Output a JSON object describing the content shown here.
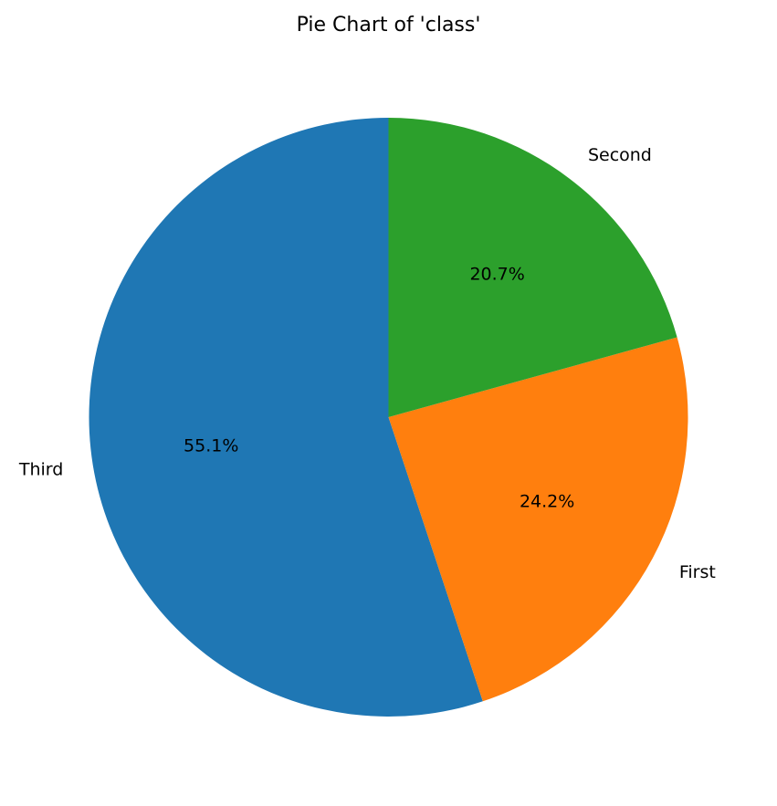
{
  "chart_data": {
    "type": "pie",
    "title": "Pie Chart of 'class'",
    "start_angle_deg": 90,
    "direction": "counterclockwise",
    "slices": [
      {
        "label": "Third",
        "value": 55.1,
        "pct_label": "55.1%",
        "color": "#1f77b4"
      },
      {
        "label": "First",
        "value": 24.2,
        "pct_label": "24.2%",
        "color": "#ff7f0e"
      },
      {
        "label": "Second",
        "value": 20.7,
        "pct_label": "20.7%",
        "color": "#2ca02c"
      }
    ]
  }
}
